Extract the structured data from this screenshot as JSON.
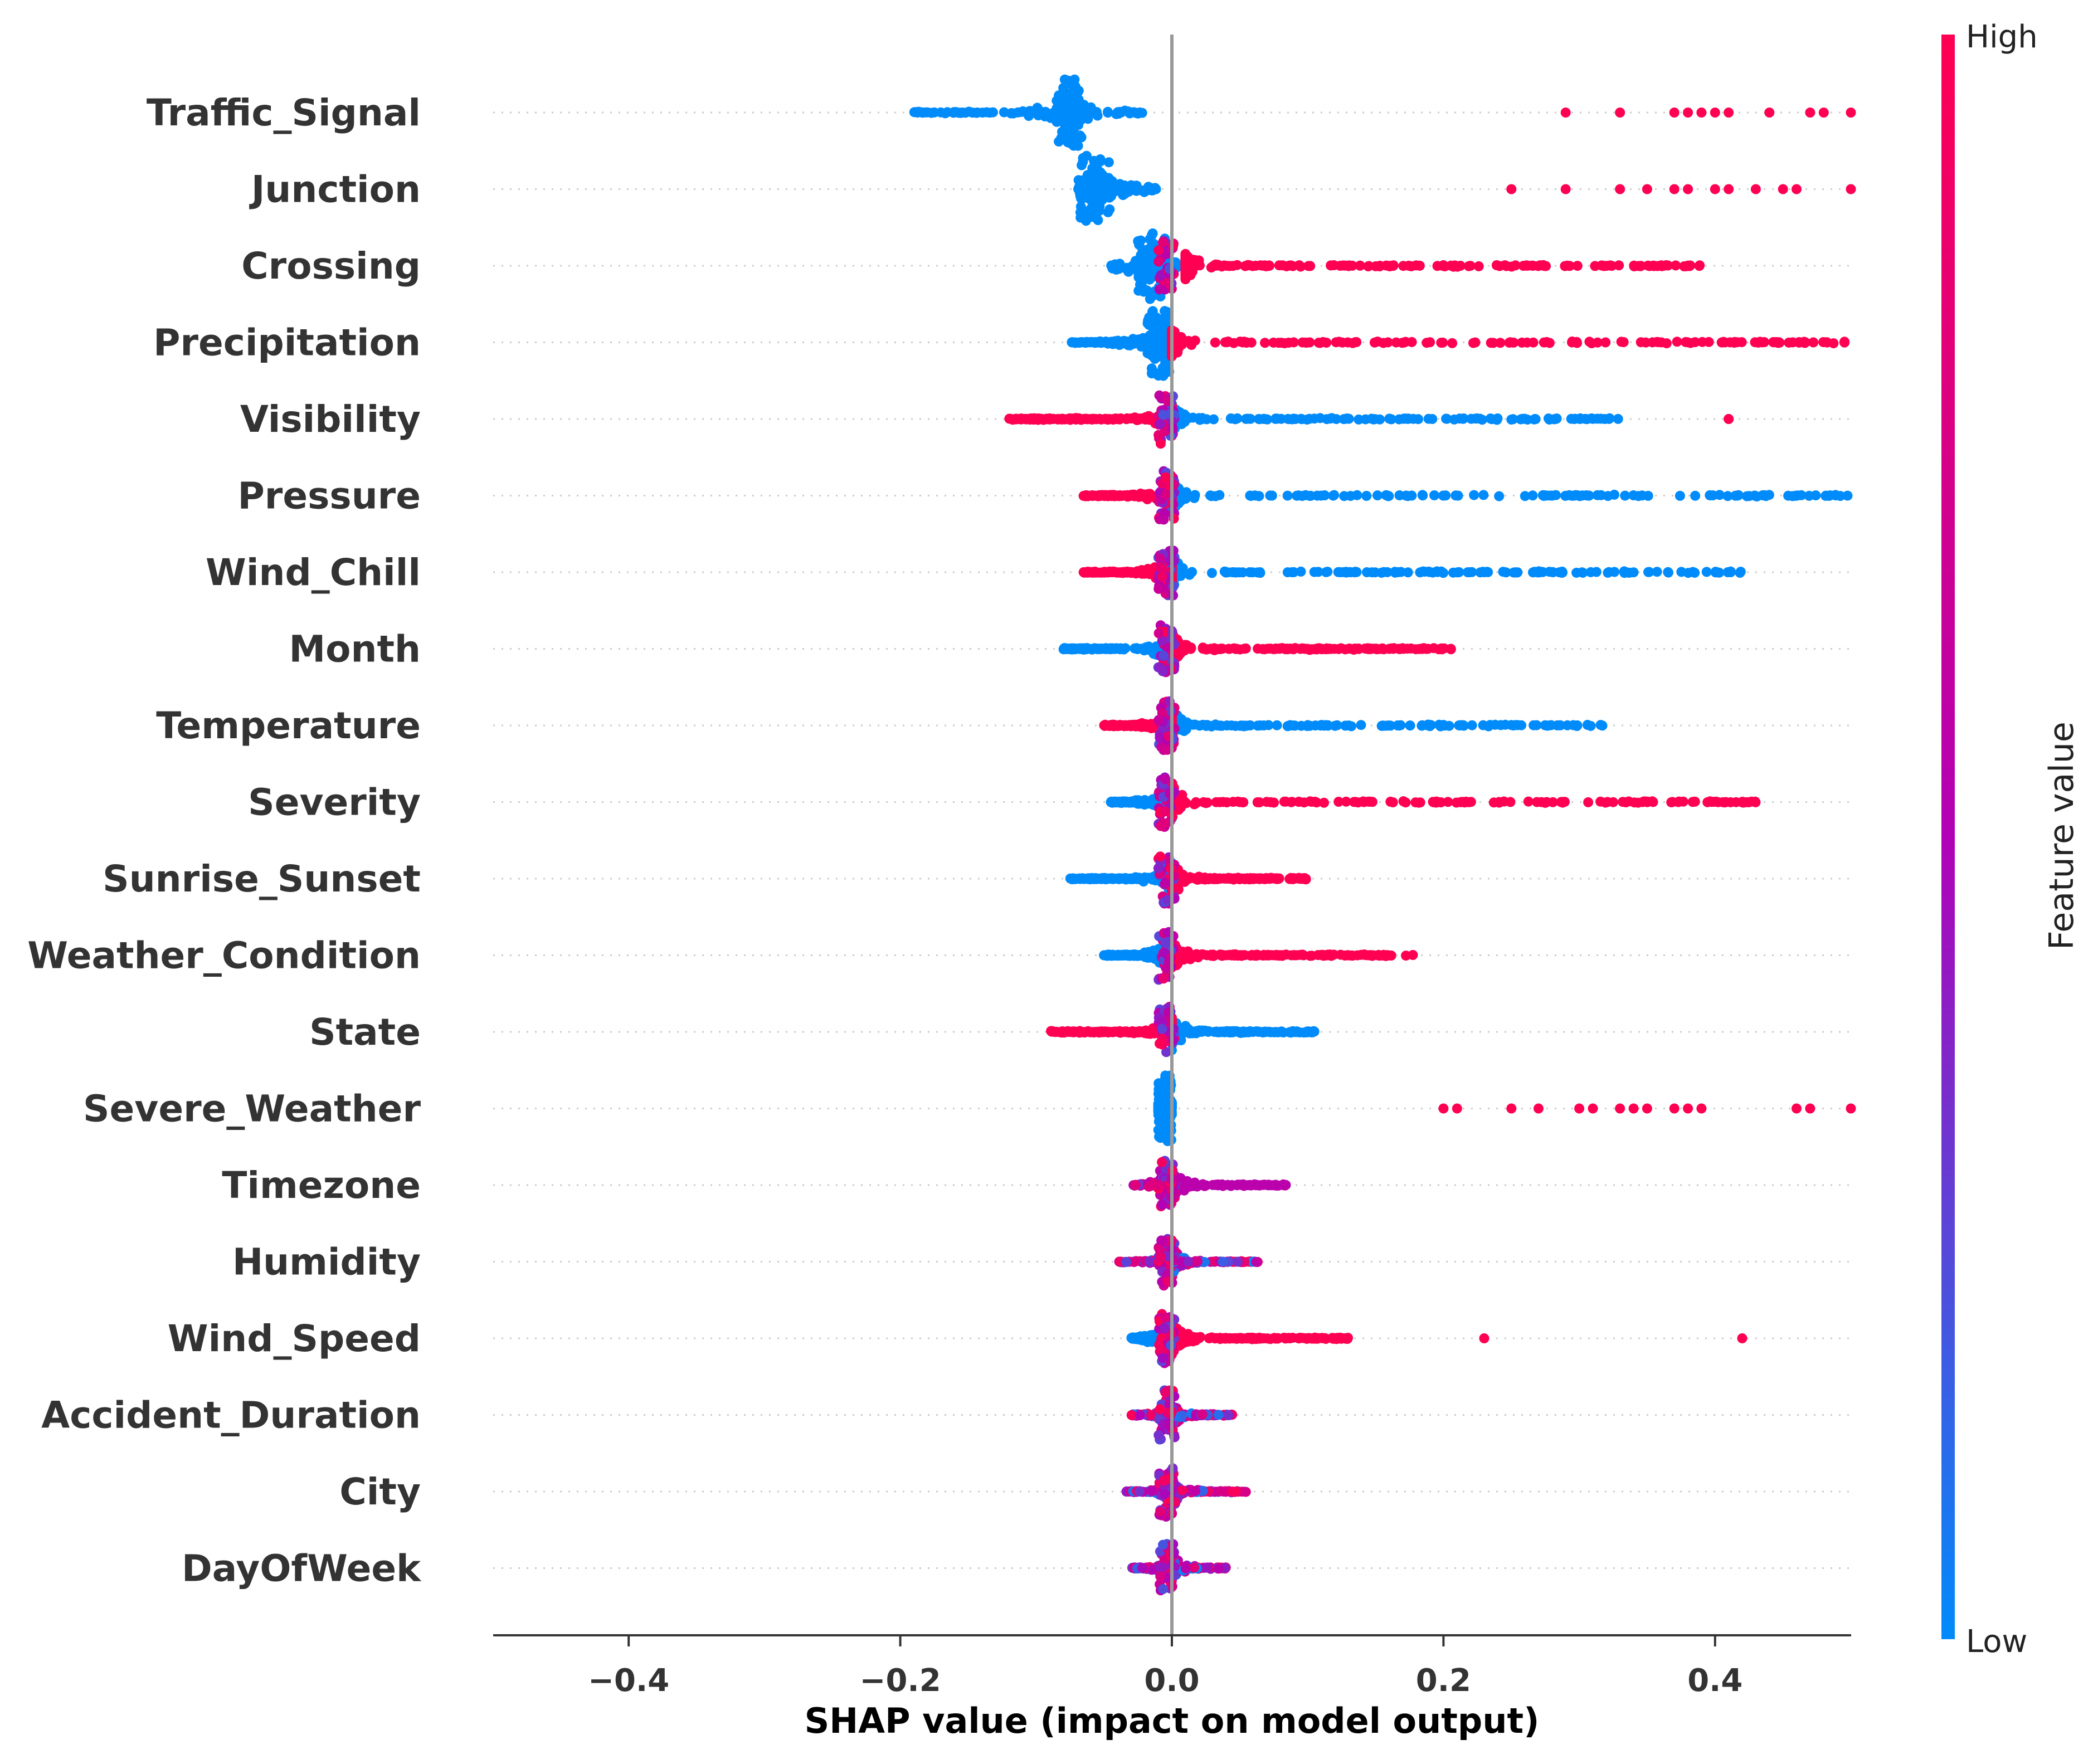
{
  "chart_data": {
    "type": "scatter",
    "subtype": "shap-beeswarm-summary",
    "title": "",
    "xlabel": "SHAP value (impact on model output)",
    "ylabel": "",
    "xlim": [
      -0.5,
      0.5
    ],
    "xticks": [
      -0.4,
      -0.2,
      0.0,
      0.2,
      0.4
    ],
    "xtick_labels": [
      "−0.4",
      "−0.2",
      "0.0",
      "0.2",
      "0.4"
    ],
    "zero_line": 0.0,
    "colorbar": {
      "title": "Feature value",
      "high_label": "High",
      "low_label": "Low",
      "low_color": "#008bfb",
      "mid_color": "#b201b6",
      "high_color": "#ff0052"
    },
    "features": [
      {
        "name": "Traffic_Signal",
        "low": {
          "min": -0.19,
          "max": -0.02,
          "core": [
            -0.085,
            -0.065
          ]
        },
        "high_points": [
          0.29,
          0.33,
          0.37,
          0.38,
          0.39,
          0.4,
          0.41,
          0.44,
          0.47,
          0.48,
          0.5
        ]
      },
      {
        "name": "Junction",
        "low": {
          "min": -0.07,
          "max": -0.01,
          "core": [
            -0.068,
            -0.045
          ]
        },
        "high_points": [
          0.25,
          0.29,
          0.33,
          0.35,
          0.37,
          0.38,
          0.4,
          0.41,
          0.43,
          0.45,
          0.46,
          0.5
        ]
      },
      {
        "name": "Crossing",
        "low": {
          "min": -0.045,
          "max": 0.005,
          "core": [
            -0.025,
            -0.005
          ]
        },
        "high": {
          "min": 0.01,
          "max": 0.39,
          "dense": [
            0.08,
            0.31
          ]
        }
      },
      {
        "name": "Precipitation",
        "low": {
          "min": -0.075,
          "max": -0.005,
          "core": [
            -0.018,
            -0.002
          ]
        },
        "high": {
          "min": 0.0,
          "max": 0.5,
          "dense": [
            0.0,
            0.42
          ]
        }
      },
      {
        "name": "Visibility",
        "high": {
          "min": -0.12,
          "max": 0.0,
          "dense": [
            -0.1,
            0.0
          ]
        },
        "low": {
          "min": 0.0,
          "max": 0.33,
          "dense": [
            0.0,
            0.3
          ]
        },
        "extra_high_points": [
          0.41,
          0.41
        ]
      },
      {
        "name": "Pressure",
        "high": {
          "min": -0.065,
          "max": 0.0,
          "dense": [
            -0.05,
            0.0
          ]
        },
        "low": {
          "min": 0.0,
          "max": 0.5,
          "dense": [
            0.0,
            0.5
          ]
        }
      },
      {
        "name": "Wind_Chill",
        "high": {
          "min": -0.065,
          "max": 0.0,
          "dense": [
            -0.05,
            0.0
          ]
        },
        "low": {
          "min": 0.0,
          "max": 0.42,
          "dense": [
            0.0,
            0.42
          ]
        }
      },
      {
        "name": "Month",
        "low": {
          "min": -0.08,
          "max": 0.0,
          "dense": [
            -0.06,
            0.0
          ]
        },
        "high": {
          "min": 0.0,
          "max": 0.21,
          "dense": [
            0.0,
            0.2
          ]
        }
      },
      {
        "name": "Temperature",
        "high": {
          "min": -0.05,
          "max": 0.0,
          "dense": [
            -0.04,
            0.0
          ]
        },
        "low": {
          "min": 0.0,
          "max": 0.32,
          "dense": [
            0.0,
            0.3
          ]
        }
      },
      {
        "name": "Severity",
        "low": {
          "min": -0.045,
          "max": 0.0,
          "dense": [
            -0.03,
            0.0
          ]
        },
        "high": {
          "min": 0.0,
          "max": 0.43,
          "dense": [
            0.0,
            0.42
          ]
        }
      },
      {
        "name": "Sunrise_Sunset",
        "low": {
          "min": -0.075,
          "max": 0.0,
          "dense": [
            -0.07,
            0.0
          ]
        },
        "high": {
          "min": 0.0,
          "max": 0.1,
          "dense": [
            0.0,
            0.1
          ]
        }
      },
      {
        "name": "Weather_Condition",
        "low": {
          "min": -0.05,
          "max": 0.0,
          "dense": [
            -0.04,
            0.0
          ]
        },
        "high": {
          "min": 0.0,
          "max": 0.18,
          "dense": [
            0.0,
            0.15
          ]
        }
      },
      {
        "name": "State",
        "high": {
          "min": -0.09,
          "max": 0.0,
          "dense": [
            -0.08,
            0.0
          ]
        },
        "low": {
          "min": 0.0,
          "max": 0.105,
          "dense": [
            0.0,
            0.095
          ]
        }
      },
      {
        "name": "Severe_Weather",
        "low": {
          "min": -0.01,
          "max": 0.0,
          "core": [
            -0.01,
            0.0
          ]
        },
        "high_points": [
          0.2,
          0.21,
          0.25,
          0.27,
          0.3,
          0.31,
          0.33,
          0.34,
          0.35,
          0.37,
          0.38,
          0.39,
          0.46,
          0.47,
          0.5
        ]
      },
      {
        "name": "Timezone",
        "mid": {
          "min": -0.03,
          "max": 0.085,
          "dense": [
            0.0,
            0.08
          ]
        }
      },
      {
        "name": "Humidity",
        "mixed": {
          "min": -0.04,
          "max": 0.065,
          "dense": [
            -0.03,
            0.06
          ]
        }
      },
      {
        "name": "Wind_Speed",
        "low": {
          "min": -0.03,
          "max": 0.0,
          "dense": [
            -0.02,
            0.0
          ]
        },
        "high": {
          "min": 0.0,
          "max": 0.13,
          "dense": [
            0.0,
            0.08
          ]
        },
        "extra_high_points": [
          0.23,
          0.42
        ]
      },
      {
        "name": "Accident_Duration",
        "mixed": {
          "min": -0.03,
          "max": 0.045,
          "dense": [
            -0.02,
            0.04
          ]
        }
      },
      {
        "name": "City",
        "mixed": {
          "min": -0.035,
          "max": 0.055,
          "dense": [
            -0.03,
            0.05
          ]
        }
      },
      {
        "name": "DayOfWeek",
        "mixed": {
          "min": -0.03,
          "max": 0.04,
          "dense": [
            -0.02,
            0.035
          ]
        }
      }
    ]
  }
}
